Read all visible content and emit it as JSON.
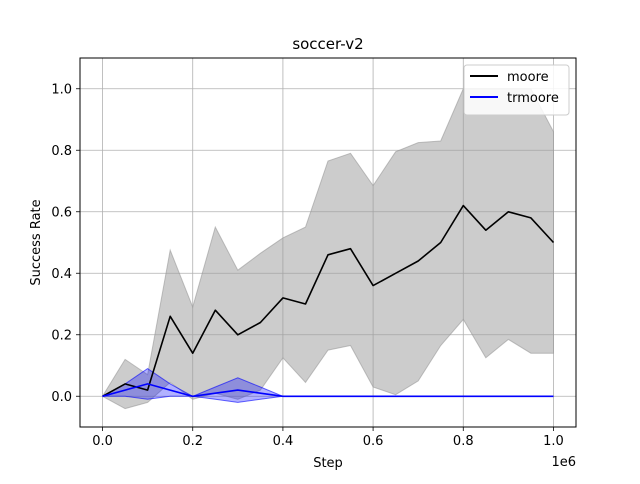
{
  "chart_data": {
    "type": "line",
    "title": "soccer-v2",
    "xlabel": "Step",
    "ylabel": "Success Rate",
    "x_offset_label": "1e6",
    "xlim": [
      -0.05,
      1.05
    ],
    "ylim": [
      -0.1,
      1.1
    ],
    "x_ticks": [
      0.0,
      0.2,
      0.4,
      0.6,
      0.8,
      1.0
    ],
    "x_tick_labels": [
      "0.0",
      "0.2",
      "0.4",
      "0.6",
      "0.8",
      "1.0"
    ],
    "y_ticks": [
      0.0,
      0.2,
      0.4,
      0.6,
      0.8,
      1.0
    ],
    "y_tick_labels": [
      "0.0",
      "0.2",
      "0.4",
      "0.6",
      "0.8",
      "1.0"
    ],
    "grid": true,
    "legend_position": "upper right",
    "x": [
      0.0,
      0.05,
      0.1,
      0.15,
      0.2,
      0.25,
      0.3,
      0.35,
      0.4,
      0.45,
      0.5,
      0.55,
      0.6,
      0.65,
      0.7,
      0.75,
      0.8,
      0.85,
      0.9,
      0.95,
      1.0
    ],
    "series": [
      {
        "name": "moore",
        "color": "#000000",
        "band_color": "#999999",
        "values": [
          0.0,
          0.04,
          0.02,
          0.26,
          0.14,
          0.28,
          0.2,
          0.24,
          0.32,
          0.3,
          0.46,
          0.48,
          0.36,
          0.4,
          0.44,
          0.5,
          0.62,
          0.54,
          0.6,
          0.58,
          0.5
        ],
        "upper": [
          0.0,
          0.12,
          0.07,
          0.475,
          0.29,
          0.55,
          0.41,
          0.465,
          0.515,
          0.55,
          0.765,
          0.79,
          0.685,
          0.795,
          0.825,
          0.83,
          1.0,
          1.0,
          1.0,
          1.0,
          0.86
        ],
        "lower": [
          0.0,
          -0.04,
          -0.02,
          0.045,
          -0.01,
          0.01,
          -0.01,
          0.02,
          0.125,
          0.045,
          0.15,
          0.165,
          0.03,
          0.005,
          0.05,
          0.165,
          0.25,
          0.125,
          0.185,
          0.14,
          0.14
        ]
      },
      {
        "name": "trmoore",
        "color": "#0000ff",
        "band_color": "#0000ff",
        "values": [
          0.0,
          0.02,
          0.04,
          0.02,
          0.0,
          0.01,
          0.02,
          0.01,
          0.0,
          0.0,
          0.0,
          0.0,
          0.0,
          0.0,
          0.0,
          0.0,
          0.0,
          0.0,
          0.0,
          0.0,
          0.0
        ],
        "upper": [
          0.0,
          0.04,
          0.09,
          0.04,
          0.0,
          0.03,
          0.06,
          0.03,
          0.0,
          0.0,
          0.0,
          0.0,
          0.0,
          0.0,
          0.0,
          0.0,
          0.0,
          0.0,
          0.0,
          0.0,
          0.0
        ],
        "lower": [
          0.0,
          0.0,
          -0.01,
          0.0,
          0.0,
          -0.01,
          -0.02,
          -0.01,
          0.0,
          0.0,
          0.0,
          0.0,
          0.0,
          0.0,
          0.0,
          0.0,
          0.0,
          0.0,
          0.0,
          0.0,
          0.0
        ]
      }
    ]
  }
}
